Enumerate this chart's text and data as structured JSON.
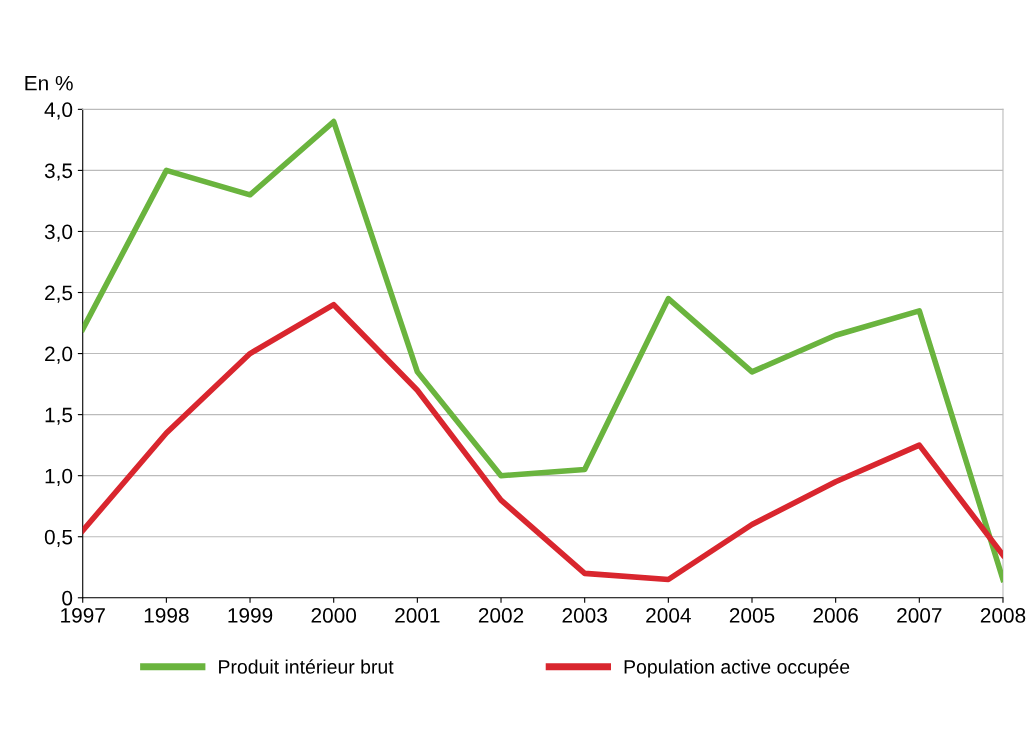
{
  "chart_data": {
    "type": "line",
    "ylabel": "En %",
    "categories": [
      "1997",
      "1998",
      "1999",
      "2000",
      "2001",
      "2002",
      "2003",
      "2004",
      "2005",
      "2006",
      "2007",
      "2008"
    ],
    "series": [
      {
        "name": "Produit intérieur brut",
        "color": "#6ab43e",
        "values": [
          2.2,
          3.5,
          3.3,
          3.9,
          1.85,
          1.0,
          1.05,
          2.45,
          1.85,
          2.15,
          2.35,
          0.15
        ]
      },
      {
        "name": "Population active occupée",
        "color": "#d9262e",
        "values": [
          0.55,
          1.35,
          2.0,
          2.4,
          1.7,
          0.8,
          0.2,
          0.15,
          0.6,
          0.95,
          1.25,
          0.35
        ]
      }
    ],
    "ylim": [
      0,
      4
    ],
    "yticks": [
      {
        "value": 0,
        "label": "0"
      },
      {
        "value": 0.5,
        "label": "0,5"
      },
      {
        "value": 1,
        "label": "1,0"
      },
      {
        "value": 1.5,
        "label": "1,5"
      },
      {
        "value": 2,
        "label": "2,0"
      },
      {
        "value": 2.5,
        "label": "2,5"
      },
      {
        "value": 3,
        "label": "3,0"
      },
      {
        "value": 3.5,
        "label": "3,5"
      },
      {
        "value": 4,
        "label": "4,0"
      }
    ],
    "grid": "y",
    "legend": "bottom",
    "marker": "none",
    "line_style": "solid"
  }
}
